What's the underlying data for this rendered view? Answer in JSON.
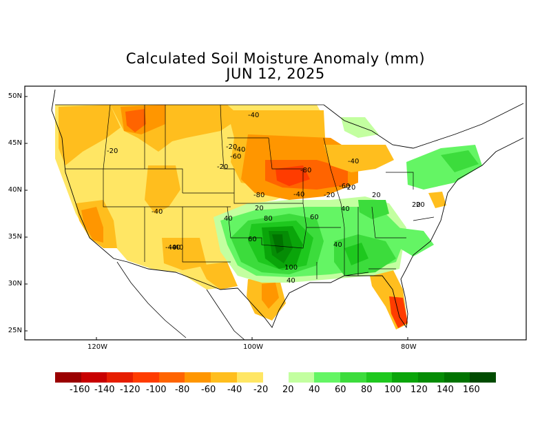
{
  "title_line1": "Calculated Soil Moisture Anomaly (mm)",
  "title_line2": "JUN 12, 2025",
  "lat_labels": [
    "50N",
    "45N",
    "40N",
    "35N",
    "30N",
    "25N"
  ],
  "lon_labels": [
    "120W",
    "100W",
    "80W"
  ],
  "contour_labels": [
    "-40",
    "-20",
    "-20",
    "-40",
    "-60",
    "-40",
    "-20",
    "-40",
    "-80",
    "-20",
    "-80",
    "-40",
    "-60",
    "-20",
    "-40",
    "-40",
    "-40",
    "20",
    "20",
    "20",
    "40",
    "40",
    "80",
    "60",
    "60",
    "40",
    "100",
    "40",
    "20"
  ],
  "legend": {
    "neg_colors": [
      "#9a0000",
      "#c80000",
      "#e61e00",
      "#ff3c00",
      "#ff6400",
      "#ff9600",
      "#ffbe1e",
      "#ffe664"
    ],
    "pos_colors": [
      "#c3ffa0",
      "#64f564",
      "#3cdc3c",
      "#1ec81e",
      "#0aa50a",
      "#058c05",
      "#007300",
      "#004b00"
    ],
    "labels": [
      "-160",
      "-140",
      "-120",
      "-100",
      "-80",
      "-60",
      "-40",
      "-20",
      "20",
      "40",
      "60",
      "80",
      "100",
      "120",
      "140",
      "160"
    ]
  }
}
